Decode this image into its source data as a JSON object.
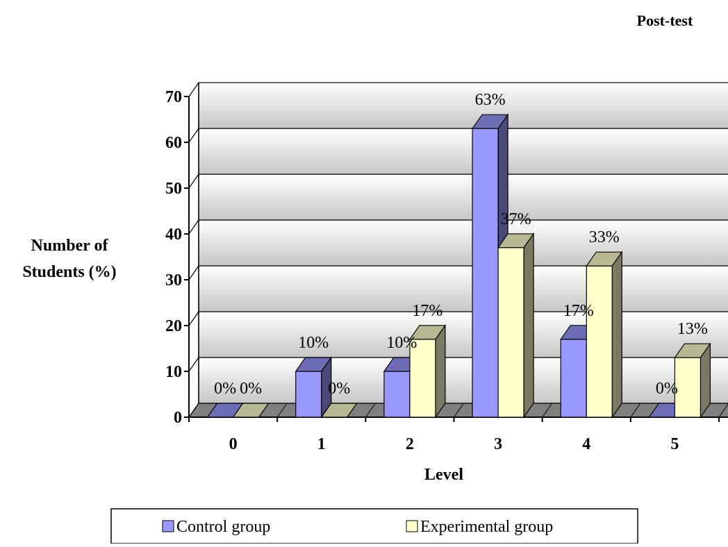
{
  "chart_data": {
    "type": "bar",
    "title": "Post-test",
    "xlabel": "Level",
    "ylabel_lines": [
      "Number of",
      "Students (%)"
    ],
    "categories": [
      "0",
      "1",
      "2",
      "3",
      "4",
      "5"
    ],
    "ylim": [
      0,
      70
    ],
    "yticks": [
      "0",
      "10",
      "20",
      "30",
      "40",
      "50",
      "60",
      "70"
    ],
    "grid": true,
    "legend_position": "bottom",
    "series": [
      {
        "name": "Control group",
        "color": "#9999ff",
        "values": [
          0,
          10,
          10,
          63,
          17,
          0
        ],
        "labels": [
          "0%",
          "10%",
          "10%",
          "63%",
          "17%",
          "0%"
        ]
      },
      {
        "name": "Experimental group",
        "color": "#ffffcc",
        "values": [
          0,
          0,
          17,
          37,
          33,
          13
        ],
        "labels": [
          "0%",
          "0%",
          "17%",
          "37%",
          "33%",
          "13%"
        ]
      }
    ]
  }
}
